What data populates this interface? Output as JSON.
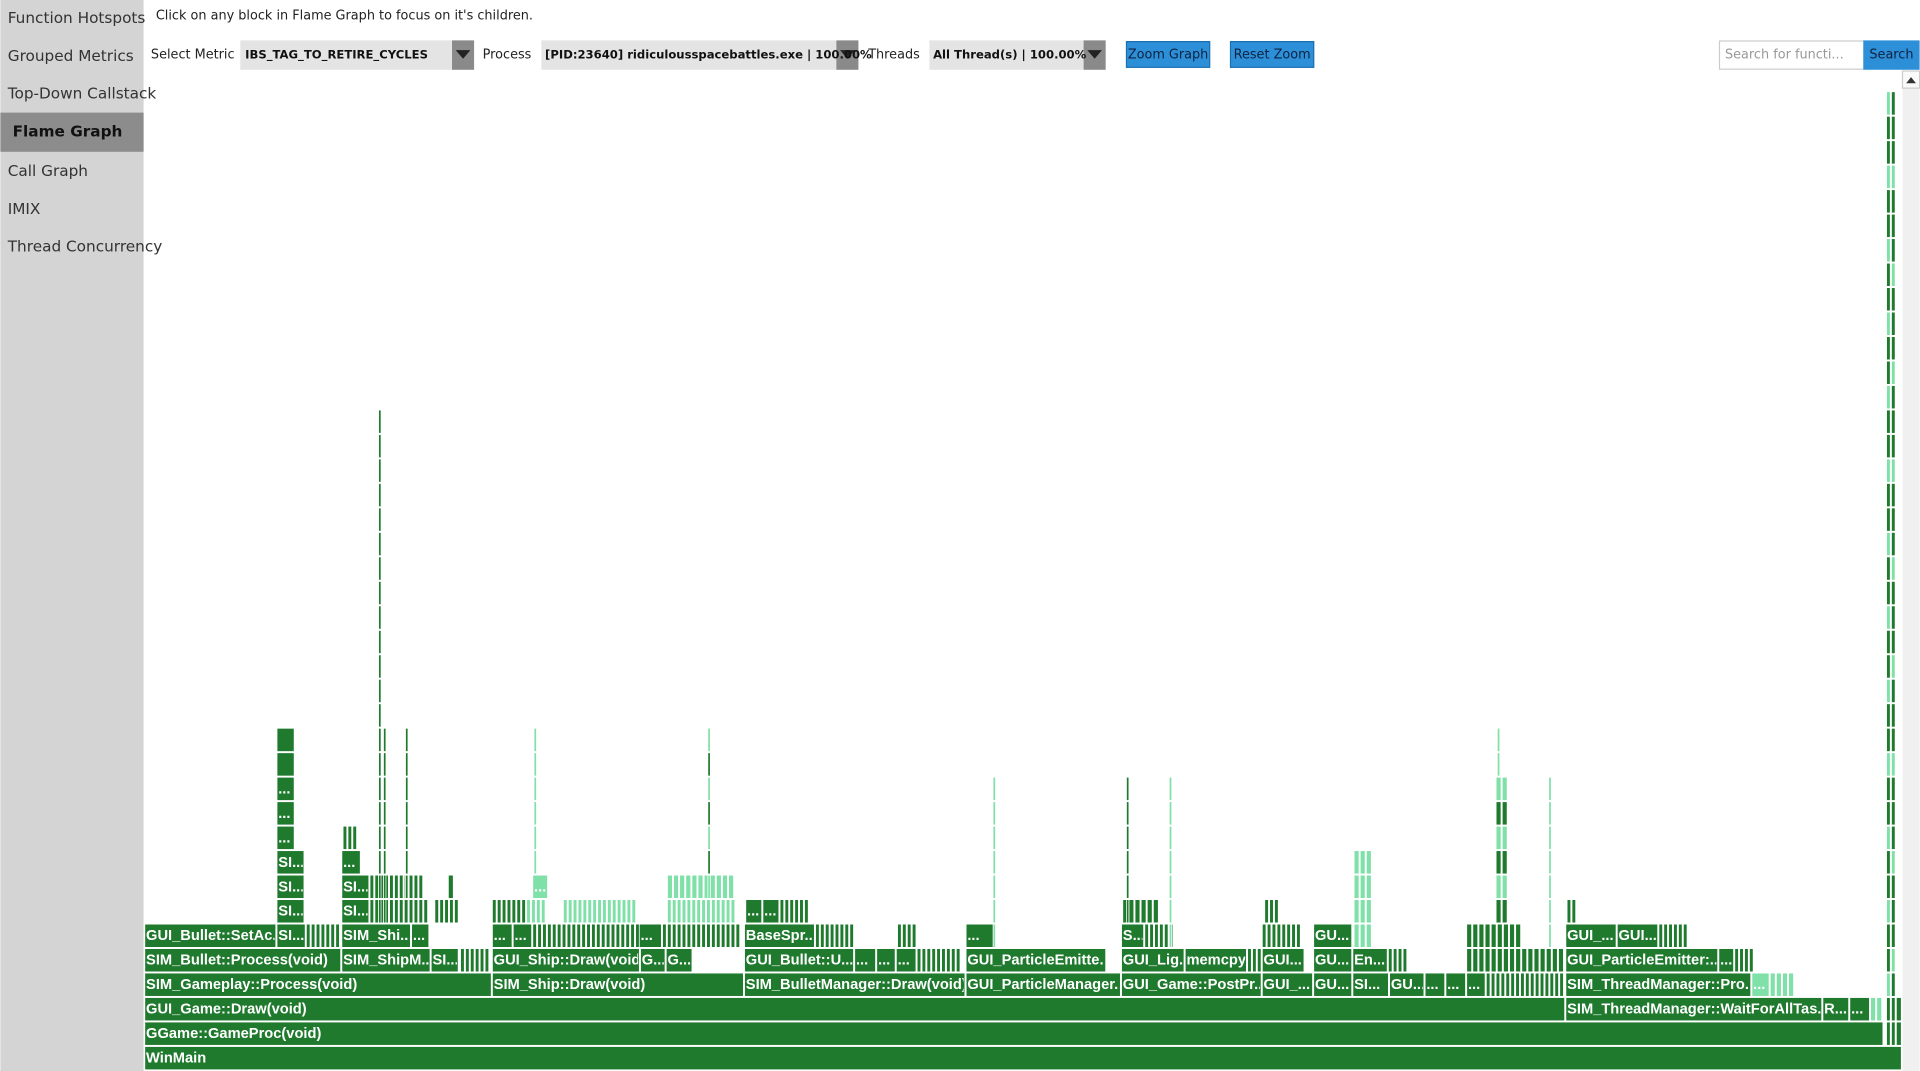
{
  "sidebar": {
    "items": [
      "Function Hotspots",
      "Grouped Metrics",
      "Top-Down Callstack",
      "Flame Graph",
      "Call Graph",
      "IMIX",
      "Thread Concurrency"
    ],
    "active": 3
  },
  "header": {
    "instruction": "Click on any block in Flame Graph to focus on it's children.",
    "metric_label": "Select Metric",
    "metric_value": "IBS_TAG_TO_RETIRE_CYCLES",
    "process_label": "Process",
    "process_value": "[PID:23640] ridiculousspacebattles.exe | 100.00%",
    "threads_label": "Threads",
    "threads_value": "All Thread(s) | 100.00%",
    "zoom_button": "Zoom Graph",
    "reset_button": "Reset Zoom",
    "search_placeholder": "Search for functi...",
    "search_button": "Search"
  },
  "flame_graph": {
    "rows": [
      [
        "WinMain"
      ],
      [
        "GGame::GameProc(void)"
      ],
      [
        "GUI_Game::Draw(void)",
        "SIM_ThreadManager::WaitForAllTas...",
        "R...",
        "..."
      ],
      [
        "SIM_Gameplay::Process(void)",
        "SIM_Ship::Draw(void)",
        "SIM_BulletManager::Draw(void)",
        "GUI_ParticleManager...",
        "GUI_Game::PostPr...",
        "GUI_...",
        "GU...",
        "SI...",
        "GU...",
        "...",
        "...",
        "...",
        "SIM_ThreadManager::Pro...",
        "..."
      ],
      [
        "SIM_Bullet::Process(void)",
        "SIM_ShipM...",
        "SI...",
        "GUI_Ship::Draw(void)",
        "G...",
        "G...",
        "GUI_Bullet::U...",
        "...",
        "...",
        "...",
        "GUI_ParticleEmitte...",
        "GUI_Lig...",
        "memcpy",
        "GUI...",
        "GU...",
        "En...",
        "GUI_ParticleEmitter:...",
        "..."
      ],
      [
        "GUI_Bullet::SetAc...",
        "SI...",
        "SIM_Shi...",
        "...",
        "...",
        "...",
        "...",
        "BaseSpr...",
        "...",
        "S...",
        "GU...",
        "GUI_...",
        "GUI..."
      ],
      [
        "SI...",
        "SI...",
        "...",
        "..."
      ],
      [
        "SI...",
        "SI...",
        "..."
      ],
      [
        "SI...",
        "..."
      ],
      [
        "..."
      ],
      [
        "..."
      ],
      [
        "..."
      ]
    ]
  }
}
